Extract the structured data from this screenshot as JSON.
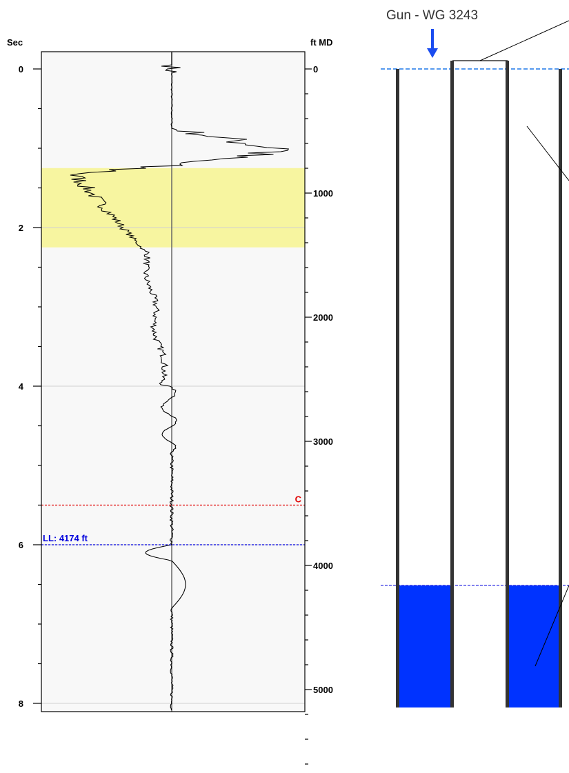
{
  "chart_data": {
    "type": "line",
    "left_axis": {
      "label": "Sec",
      "range": [
        0,
        8
      ],
      "major_ticks": [
        0,
        2,
        4,
        6,
        8
      ],
      "minor_step": 0.5
    },
    "right_axis": {
      "label": "ft MD",
      "range": [
        0,
        5600
      ],
      "major_ticks": [
        0,
        1000,
        2000,
        3000,
        4000,
        5000
      ],
      "minor_step": 200
    },
    "gridlines_sec": [
      2,
      4,
      6,
      8
    ],
    "highlight_band_sec": [
      1.25,
      2.25
    ],
    "markers": [
      {
        "id": "collar",
        "label": "C",
        "sec": 5.5,
        "color": "#e00000"
      },
      {
        "id": "liquid-level",
        "label": "LL: 4174 ft",
        "sec": 6.0,
        "depth_ft": 4174,
        "color": "#0000dd"
      }
    ],
    "colors": {
      "band": "#f7f5a0",
      "trace": "#000000",
      "plot_bg": "#f8f8f8",
      "fluid": "#0033ff",
      "arrow": "#1a4cf0"
    }
  },
  "wellbore": {
    "gun_label": "Gun - WG 3243"
  }
}
